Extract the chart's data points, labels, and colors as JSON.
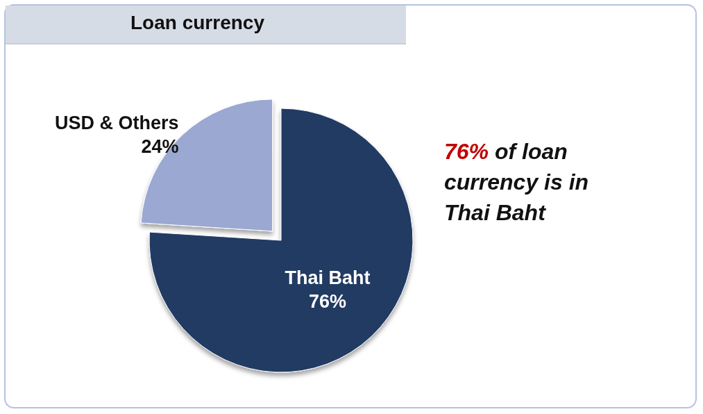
{
  "chart_data": {
    "type": "pie",
    "title": "Loan currency",
    "categories": [
      "USD & Others",
      "Thai Baht"
    ],
    "values": [
      24,
      76
    ],
    "colors": [
      "#9aa8d2",
      "#243a64"
    ],
    "value_labels": [
      "24%",
      "76%"
    ],
    "legend": false,
    "annotations": [
      "76% of loan currency is in Thai Baht"
    ]
  }
}
